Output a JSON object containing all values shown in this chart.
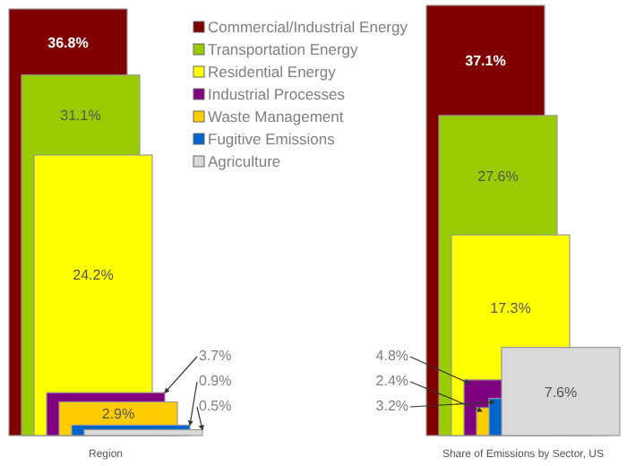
{
  "chart_data": [
    {
      "type": "bar",
      "xlabel": "Region",
      "categories": [
        null
      ],
      "data_labels": true,
      "legend": "top",
      "series": [
        {
          "name": "Commercial/Industrial Energy",
          "color": "#800000",
          "values": [
            36.8
          ],
          "value_labels": [
            "36.8%"
          ]
        },
        {
          "name": "Transportation Energy",
          "color": "#99cc00",
          "values": [
            31.1
          ],
          "value_labels": [
            "31.1%"
          ]
        },
        {
          "name": "Residential Energy",
          "color": "#ffff00",
          "values": [
            24.2
          ],
          "value_labels": [
            "24.2%"
          ]
        },
        {
          "name": "Industrial Processes",
          "color": "#800080",
          "values": [
            3.7
          ],
          "value_labels": [
            "3.7%"
          ]
        },
        {
          "name": "Waste Management",
          "color": "#ffcc00",
          "values": [
            2.9
          ],
          "value_labels": [
            "2.9%"
          ]
        },
        {
          "name": "Fugitive Emissions",
          "color": "#0066cc",
          "values": [
            0.9
          ],
          "value_labels": [
            "0.9%"
          ]
        },
        {
          "name": "Agriculture",
          "color": "#d9d9d9",
          "values": [
            0.5
          ],
          "value_labels": [
            "0.5%"
          ]
        }
      ]
    },
    {
      "type": "bar",
      "xlabel": "Share of Emissions by Sector, US",
      "categories": [
        null
      ],
      "data_labels": true,
      "legend": false,
      "series": [
        {
          "color": "#800000",
          "values": [
            37.1
          ],
          "value_labels": [
            "37.1%"
          ]
        },
        {
          "color": "#99cc00",
          "values": [
            27.6
          ],
          "value_labels": [
            "27.6%"
          ]
        },
        {
          "color": "#ffff00",
          "values": [
            17.3
          ],
          "value_labels": [
            "17.3%"
          ]
        },
        {
          "color": "#800080",
          "values": [
            4.8
          ],
          "value_labels": [
            "4.8%"
          ]
        },
        {
          "color": "#ffcc00",
          "values": [
            2.4
          ],
          "value_labels": [
            "2.4%"
          ]
        },
        {
          "color": "#0066cc",
          "values": [
            3.2
          ],
          "value_labels": [
            "3.2%"
          ]
        },
        {
          "color": "#d9d9d9",
          "values": [
            7.6
          ],
          "value_labels": [
            "7.6%"
          ]
        }
      ]
    }
  ]
}
